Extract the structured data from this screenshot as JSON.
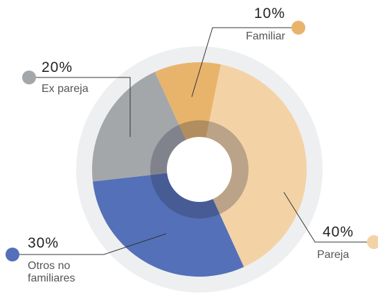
{
  "chart_data": {
    "type": "pie",
    "categories": [
      "Pareja",
      "Otros no familiares",
      "Ex pareja",
      "Familiar"
    ],
    "values": [
      40,
      30,
      20,
      10
    ],
    "value_labels": [
      "40%",
      "30%",
      "20%",
      "10%"
    ],
    "colors": [
      "#f3d3a6",
      "#5470b8",
      "#a3a7aa",
      "#e8b46c"
    ]
  }
}
